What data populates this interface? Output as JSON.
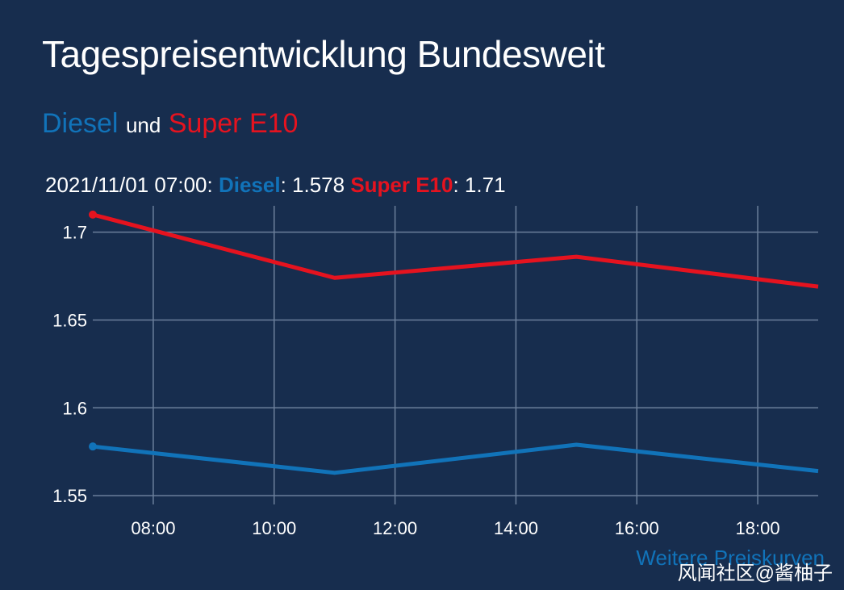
{
  "header": {
    "title": "Tagespreisentwicklung Bundesweit",
    "subtitle_diesel": "Diesel",
    "subtitle_und": "und",
    "subtitle_e10": "Super E10"
  },
  "readout": {
    "timestamp": "2021/11/01 07:00:",
    "diesel_label": "Diesel",
    "diesel_value": ": 1.578",
    "e10_label": "Super E10",
    "e10_value": ": 1.71"
  },
  "footer": {
    "more_link": "Weitere Preiskurven",
    "watermark": "风闻社区@酱柚子"
  },
  "colors": {
    "background": "#172d4e",
    "diesel": "#1173b9",
    "e10": "#e5131f",
    "grid": "#6b7f9b"
  },
  "chart_data": {
    "type": "line",
    "x": [
      "07:00",
      "11:00",
      "15:00",
      "19:00"
    ],
    "xticks": [
      "08:00",
      "10:00",
      "12:00",
      "14:00",
      "16:00",
      "18:00"
    ],
    "yticks": [
      "1.7",
      "1.65",
      "1.6",
      "1.55"
    ],
    "xlim": [
      "07:00",
      "19:00"
    ],
    "ylim": [
      1.545,
      1.715
    ],
    "grid": true,
    "series": [
      {
        "name": "Diesel",
        "color": "#1173b9",
        "values": [
          1.578,
          1.563,
          1.579,
          1.564
        ]
      },
      {
        "name": "Super E10",
        "color": "#e5131f",
        "values": [
          1.71,
          1.674,
          1.686,
          1.669
        ]
      }
    ]
  }
}
